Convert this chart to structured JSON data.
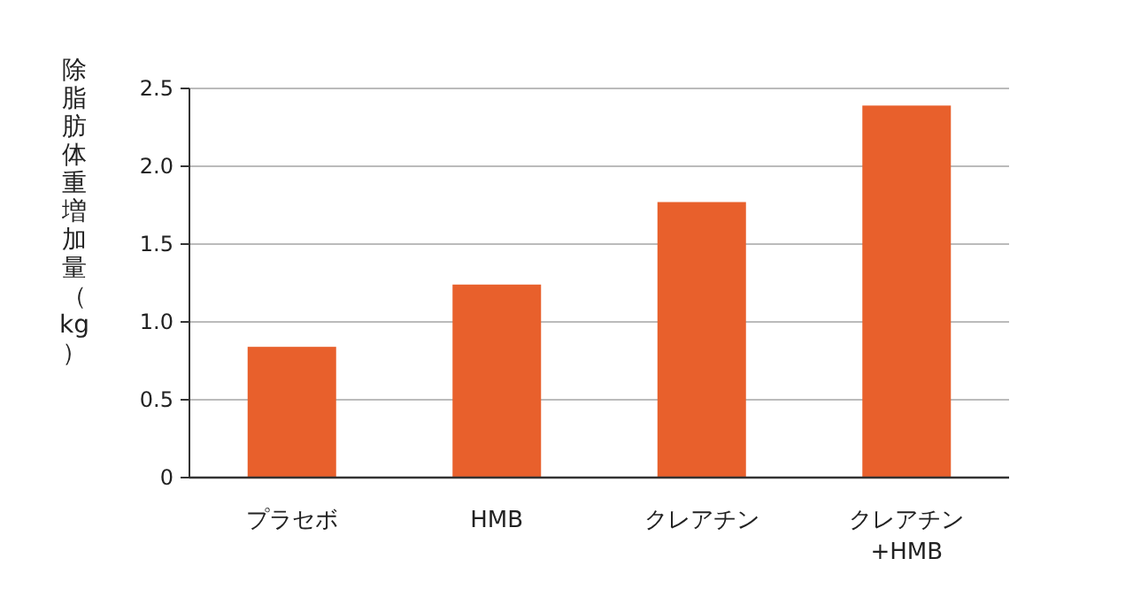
{
  "chart_data": {
    "type": "bar",
    "ylabel": "除脂肪体重増加量（kg）",
    "categories": [
      "プラセボ",
      "HMB",
      "クレアチン",
      "クレアチン\n+HMB"
    ],
    "values": [
      0.84,
      1.24,
      1.77,
      2.39
    ],
    "color": "#e8602c",
    "ylim": [
      0,
      2.5
    ],
    "yticks": [
      0,
      0.5,
      {
        "value": 1,
        "label": "1.0"
      },
      1.5,
      {
        "value": 2,
        "label": "2.0"
      },
      2.5
    ],
    "grid": "y"
  }
}
